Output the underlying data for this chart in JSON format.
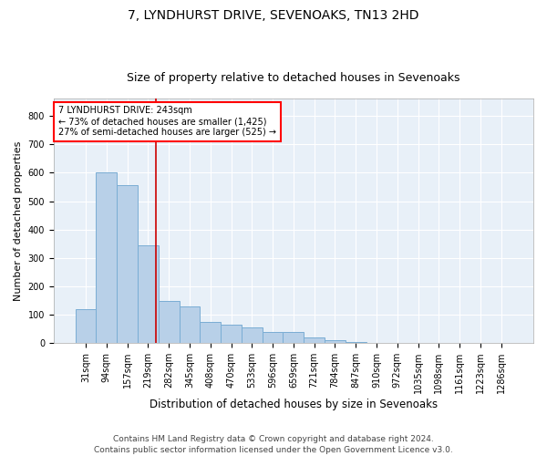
{
  "title1": "7, LYNDHURST DRIVE, SEVENOAKS, TN13 2HD",
  "title2": "Size of property relative to detached houses in Sevenoaks",
  "xlabel": "Distribution of detached houses by size in Sevenoaks",
  "ylabel": "Number of detached properties",
  "categories": [
    "31sqm",
    "94sqm",
    "157sqm",
    "219sqm",
    "282sqm",
    "345sqm",
    "408sqm",
    "470sqm",
    "533sqm",
    "596sqm",
    "659sqm",
    "721sqm",
    "784sqm",
    "847sqm",
    "910sqm",
    "972sqm",
    "1035sqm",
    "1098sqm",
    "1161sqm",
    "1223sqm",
    "1286sqm"
  ],
  "values": [
    120,
    600,
    555,
    345,
    150,
    130,
    75,
    65,
    55,
    40,
    40,
    20,
    10,
    3,
    0,
    0,
    0,
    0,
    0,
    0,
    0
  ],
  "bar_color": "#b8d0e8",
  "bar_edge_color": "#7aadd4",
  "red_line_x": 3.38,
  "annotation_line1": "7 LYNDHURST DRIVE: 243sqm",
  "annotation_line2": "← 73% of detached houses are smaller (1,425)",
  "annotation_line3": "27% of semi-detached houses are larger (525) →",
  "annotation_box_color": "white",
  "annotation_box_edge_color": "red",
  "red_line_color": "#cc0000",
  "ylim": [
    0,
    860
  ],
  "yticks": [
    0,
    100,
    200,
    300,
    400,
    500,
    600,
    700,
    800
  ],
  "bg_color": "#e8f0f8",
  "footer_line1": "Contains HM Land Registry data © Crown copyright and database right 2024.",
  "footer_line2": "Contains public sector information licensed under the Open Government Licence v3.0.",
  "title1_fontsize": 10,
  "title2_fontsize": 9,
  "xlabel_fontsize": 8.5,
  "ylabel_fontsize": 8,
  "tick_fontsize": 7,
  "footer_fontsize": 6.5,
  "annotation_fontsize": 7
}
